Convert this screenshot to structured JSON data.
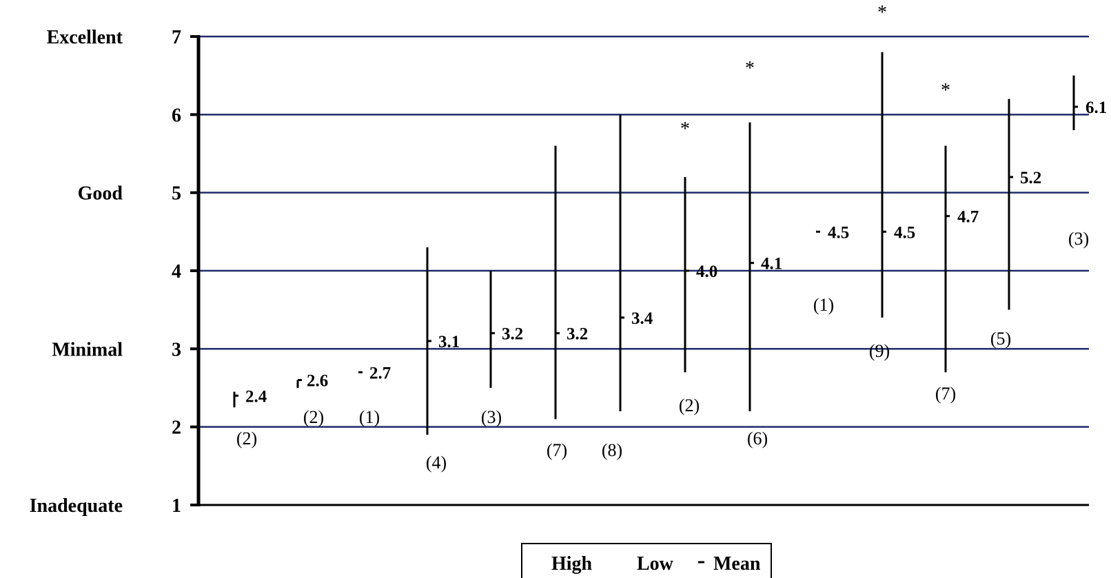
{
  "chart_data": {
    "type": "range",
    "ylim": [
      1,
      7
    ],
    "yticks": [
      1,
      2,
      3,
      4,
      5,
      6,
      7
    ],
    "rating_labels": [
      {
        "y": 7,
        "text": "Excellent"
      },
      {
        "y": 5,
        "text": "Good"
      },
      {
        "y": 3,
        "text": "Minimal"
      },
      {
        "y": 1,
        "text": "Inadequate"
      }
    ],
    "grid": true,
    "items": [
      {
        "high": 2.45,
        "low": 2.25,
        "mean": 2.4,
        "mean_label": "2.4",
        "count": "(2)",
        "star": false
      },
      {
        "high": 2.6,
        "low": 2.5,
        "mean": 2.6,
        "mean_label": "2.6",
        "count": "(2)",
        "star": false
      },
      {
        "high": null,
        "low": null,
        "mean": 2.7,
        "mean_label": "2.7",
        "count": "(1)",
        "star": false
      },
      {
        "high": 4.3,
        "low": 1.9,
        "mean": 3.1,
        "mean_label": "3.1",
        "count": "(4)",
        "star": false
      },
      {
        "high": 4.0,
        "low": 2.5,
        "mean": 3.2,
        "mean_label": "3.2",
        "count": "(3)",
        "star": false
      },
      {
        "high": 5.6,
        "low": 2.1,
        "mean": 3.2,
        "mean_label": "3.2",
        "count": "(7)",
        "star": false
      },
      {
        "high": 6.0,
        "low": 2.2,
        "mean": 3.4,
        "mean_label": "3.4",
        "count": "(8)",
        "star": false
      },
      {
        "high": 5.2,
        "low": 2.7,
        "mean": 4.0,
        "mean_label": "4.0",
        "count": "(2)",
        "star": true
      },
      {
        "high": 5.9,
        "low": 2.2,
        "mean": 4.1,
        "mean_label": "4.1",
        "count": "(6)",
        "star": true
      },
      {
        "high": null,
        "low": null,
        "mean": 4.5,
        "mean_label": "4.5",
        "count": "(1)",
        "star": false
      },
      {
        "high": 6.8,
        "low": 3.4,
        "mean": 4.5,
        "mean_label": "4.5",
        "count": "(9)",
        "star": true
      },
      {
        "high": 5.6,
        "low": 2.7,
        "mean": 4.7,
        "mean_label": "4.7",
        "count": "(7)",
        "star": true
      },
      {
        "high": 6.2,
        "low": 3.5,
        "mean": 5.2,
        "mean_label": "5.2",
        "count": "(5)",
        "star": false
      },
      {
        "high": 6.5,
        "low": 5.8,
        "mean": 6.1,
        "mean_label": "6.1",
        "count": "(3)",
        "star": false
      }
    ],
    "star_symbol": "*",
    "legend": {
      "position": "bottom-center",
      "entries": [
        "High",
        "Low",
        "Mean"
      ]
    }
  }
}
